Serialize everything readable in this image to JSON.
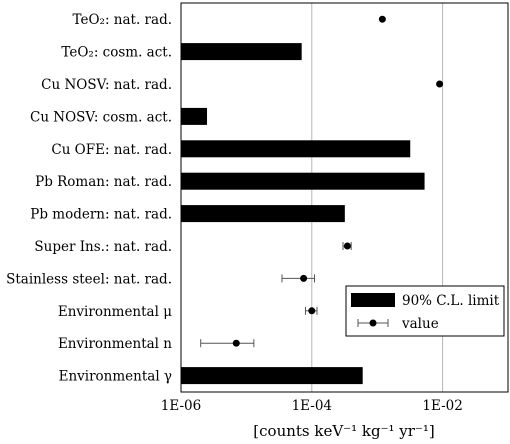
{
  "chart_data": {
    "type": "bar",
    "orientation": "horizontal",
    "x_scale": "log",
    "xlim": [
      1e-06,
      0.1
    ],
    "x_ticks": [
      {
        "value": 1e-06,
        "label": "1E-06"
      },
      {
        "value": 0.0001,
        "label": "1E-04"
      },
      {
        "value": 0.01,
        "label": "1E-02"
      }
    ],
    "xlabel": "[counts keV⁻¹ kg⁻¹ yr⁻¹]",
    "grid": "vertical",
    "legend_position": "bottom-right",
    "categories": [
      "TeO₂: nat. rad.",
      "TeO₂: cosm. act.",
      "Cu NOSV: nat. rad.",
      "Cu NOSV: cosm. act.",
      "Cu OFE: nat. rad.",
      "Pb Roman: nat. rad.",
      "Pb modern: nat. rad.",
      "Super Ins.: nat. rad.",
      "Stainless steel: nat. rad.",
      "Environmental μ",
      "Environmental n",
      "Environmental γ"
    ],
    "series": [
      {
        "name": "90% C.L. limit",
        "kind": "bar",
        "values": [
          null,
          7e-05,
          null,
          2.5e-06,
          0.0032,
          0.0053,
          0.00032,
          null,
          null,
          null,
          null,
          0.0006
        ]
      },
      {
        "name": "value",
        "kind": "point",
        "values": [
          0.0012,
          null,
          0.009,
          null,
          null,
          null,
          null,
          0.00035,
          7.5e-05,
          0.0001,
          7e-06,
          null
        ],
        "err_low": [
          null,
          null,
          null,
          null,
          null,
          null,
          null,
          0.0003,
          3.5e-05,
          8e-05,
          2e-06,
          null
        ],
        "err_high": [
          null,
          null,
          null,
          null,
          null,
          null,
          null,
          0.0004,
          0.00011,
          0.00012,
          1.3e-05,
          null
        ]
      }
    ]
  }
}
